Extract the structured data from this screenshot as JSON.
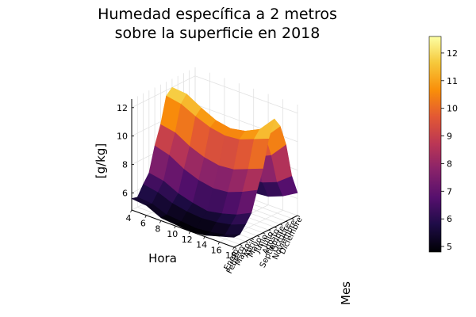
{
  "chart_data": {
    "type": "surface",
    "title_lines": [
      "Humedad específica a 2 metros",
      "sobre la superficie en 2018"
    ],
    "xlabel": "Hora",
    "ylabel": "Mes",
    "zlabel": "[g/kg]",
    "x_ticks": [
      4,
      6,
      8,
      10,
      12,
      14,
      16,
      18
    ],
    "months": [
      "Enero",
      "Febrero",
      "Marzo",
      "Abril",
      "Mayo",
      "Junio",
      "Julio",
      "Agosto",
      "Septiembre",
      "Octubre",
      "Noviembre",
      "Diciembre"
    ],
    "z_ticks": [
      6,
      8,
      10,
      12
    ],
    "zlim": [
      4.8,
      12.6
    ],
    "colorbar_ticks": [
      5,
      6,
      7,
      8,
      9,
      10,
      11,
      12
    ],
    "colorbar_range": [
      4.8,
      12.6
    ],
    "colormap": "inferno",
    "grid": true,
    "hours": [
      4,
      6,
      8,
      10,
      12,
      14,
      16,
      18
    ],
    "values": [
      [
        5.6,
        5.5,
        5.0,
        4.9,
        4.8,
        4.9,
        5.2,
        5.5
      ],
      [
        5.5,
        5.4,
        5.0,
        4.9,
        4.8,
        4.9,
        5.1,
        5.5
      ],
      [
        6.2,
        6.0,
        5.6,
        5.4,
        5.3,
        5.4,
        5.6,
        6.0
      ],
      [
        6.8,
        6.6,
        6.1,
        5.8,
        5.6,
        5.8,
        6.1,
        6.6
      ],
      [
        8.5,
        8.2,
        7.6,
        7.2,
        7.0,
        7.1,
        7.5,
        8.0
      ],
      [
        9.8,
        9.6,
        9.0,
        8.6,
        8.4,
        8.5,
        8.9,
        9.3
      ],
      [
        11.6,
        11.4,
        10.9,
        10.5,
        10.3,
        10.4,
        10.8,
        11.2
      ],
      [
        12.0,
        11.9,
        11.3,
        10.8,
        10.6,
        10.8,
        11.3,
        12.4
      ],
      [
        11.3,
        11.1,
        10.6,
        10.2,
        10.0,
        10.2,
        10.6,
        11.7
      ],
      [
        9.6,
        9.4,
        9.0,
        8.7,
        8.5,
        8.6,
        9.1,
        10.2
      ],
      [
        7.6,
        7.4,
        7.0,
        6.7,
        6.5,
        6.6,
        7.0,
        7.8
      ],
      [
        6.1,
        6.0,
        5.6,
        5.4,
        5.3,
        5.4,
        5.8,
        6.4
      ]
    ]
  }
}
